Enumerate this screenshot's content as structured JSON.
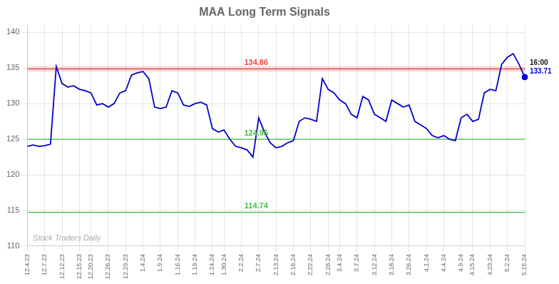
{
  "chart_data": {
    "type": "line",
    "title": "MAA Long Term Signals",
    "categories": [
      "12.4.23",
      null,
      null,
      "12.7.23",
      null,
      null,
      "12.12.23",
      null,
      null,
      "12.15.23",
      null,
      "12.20.23",
      null,
      null,
      "12.26.23",
      null,
      null,
      "12.29.23",
      null,
      null,
      "1.4.24",
      null,
      null,
      "1.9.24",
      null,
      null,
      "1.16.24",
      null,
      null,
      "1.19.24",
      null,
      null,
      "1.24.24",
      null,
      "1.30.24",
      null,
      null,
      "2.2.24",
      null,
      null,
      "2.7.24",
      null,
      null,
      "2.13.24",
      null,
      null,
      "2.16.24",
      null,
      null,
      "2.22.24",
      null,
      null,
      "2.26.24",
      null,
      "3.4.24",
      null,
      null,
      "3.7.24",
      null,
      null,
      "3.12.24",
      null,
      null,
      "3.18.24",
      null,
      null,
      "3.26.24",
      null,
      null,
      "4.1.24",
      null,
      null,
      "4.4.24",
      null,
      null,
      "4.9.24",
      null,
      "4.15.24",
      null,
      null,
      "4.23.24",
      null,
      null,
      "5.2.24",
      null,
      null,
      "5.15.24"
    ],
    "values": [
      124.0,
      124.2,
      124.0,
      124.1,
      124.3,
      135.2,
      132.8,
      132.3,
      132.5,
      132.0,
      131.8,
      131.5,
      129.8,
      130.0,
      129.5,
      130.0,
      131.5,
      131.8,
      134.0,
      134.3,
      134.5,
      133.5,
      129.5,
      129.3,
      129.5,
      131.8,
      131.5,
      129.8,
      129.6,
      130.0,
      130.2,
      129.8,
      126.5,
      126.0,
      126.3,
      125.0,
      124.0,
      123.8,
      123.5,
      122.5,
      128.0,
      126.0,
      124.5,
      123.8,
      124.0,
      124.5,
      124.8,
      127.5,
      128.0,
      127.8,
      127.5,
      133.5,
      132.0,
      131.5,
      130.5,
      130.0,
      128.5,
      128.0,
      131.0,
      130.5,
      128.5,
      128.0,
      127.5,
      130.5,
      130.0,
      129.5,
      129.8,
      127.5,
      127.0,
      126.5,
      125.5,
      125.2,
      125.5,
      125.0,
      124.8,
      128.0,
      128.5,
      127.5,
      127.8,
      131.5,
      132.0,
      131.8,
      135.5,
      136.5,
      137.0,
      135.5,
      133.71
    ],
    "color": "#0000cc",
    "ylim": [
      110,
      141
    ],
    "yticks": [
      110,
      115,
      120,
      125,
      130,
      135,
      140
    ],
    "grid": true,
    "reference_lines": [
      {
        "value": 134.86,
        "label": "134.86",
        "color": "#ee4444"
      },
      {
        "value": 125.0,
        "label": "124.95",
        "color": "#44bb44"
      },
      {
        "value": 114.74,
        "label": "114.74",
        "color": "#44bb44"
      }
    ],
    "end_point": {
      "value": 133.71,
      "label": "16:00",
      "color": "#0000cc"
    },
    "watermark": "Stock Traders Daily"
  }
}
